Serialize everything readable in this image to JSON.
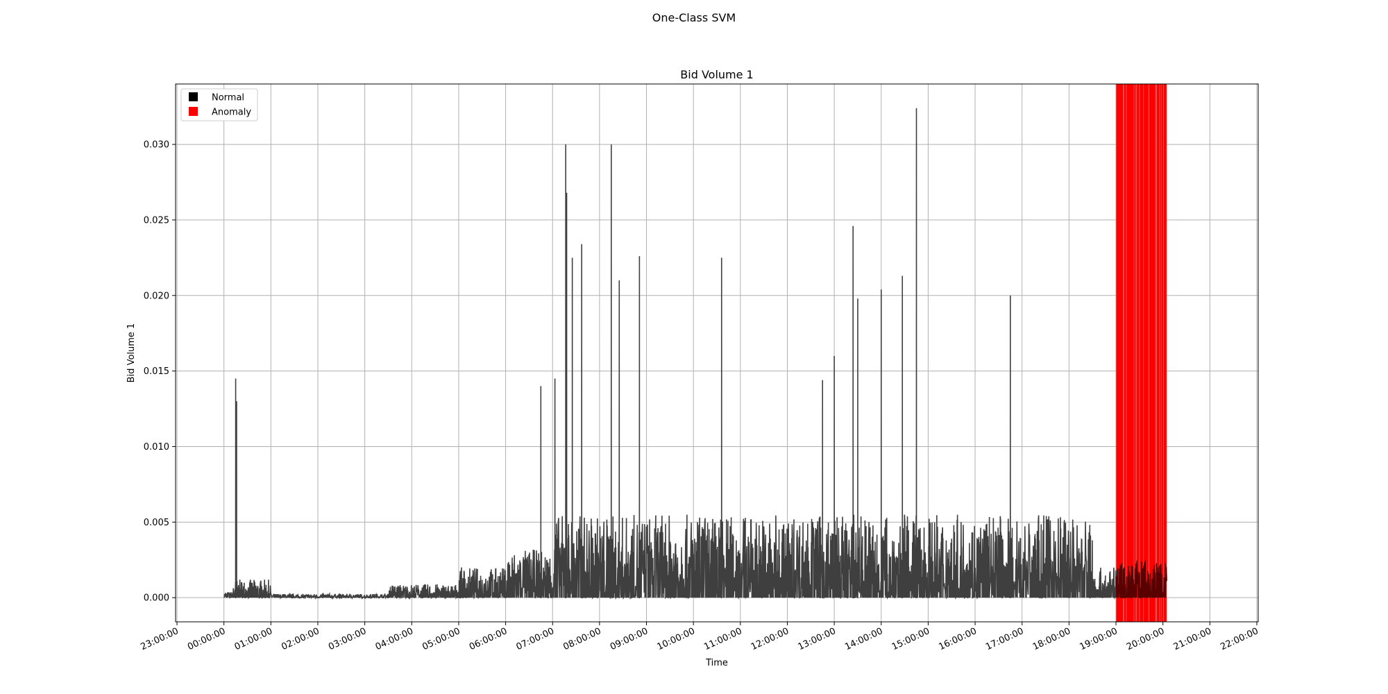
{
  "figure": {
    "suptitle": "One-Class SVM"
  },
  "chart_data": {
    "type": "line",
    "title": "Bid Volume 1",
    "xlabel": "Time",
    "ylabel": "Bid Volume 1",
    "x_axis": "time of day (hours since 23:00:00)",
    "xlim": [
      -0.03,
      23.03
    ],
    "ylim": [
      -0.0016,
      0.034
    ],
    "yticks": [
      0.0,
      0.005,
      0.01,
      0.015,
      0.02,
      0.025,
      0.03
    ],
    "ytick_labels": [
      "0.000",
      "0.005",
      "0.010",
      "0.015",
      "0.020",
      "0.025",
      "0.030"
    ],
    "xtick_labels": [
      "23:00:00",
      "00:00:00",
      "01:00:00",
      "02:00:00",
      "03:00:00",
      "04:00:00",
      "05:00:00",
      "06:00:00",
      "07:00:00",
      "08:00:00",
      "09:00:00",
      "10:00:00",
      "11:00:00",
      "12:00:00",
      "13:00:00",
      "14:00:00",
      "15:00:00",
      "16:00:00",
      "17:00:00",
      "18:00:00",
      "19:00:00",
      "20:00:00",
      "21:00:00",
      "22:00:00"
    ],
    "grid": true,
    "legend": {
      "placement": "upper left",
      "entries": [
        {
          "label": "Normal",
          "color": "#000000"
        },
        {
          "label": "Anomaly",
          "color": "#ff0000"
        }
      ]
    },
    "colors": {
      "normal_line": "#3f3f3f",
      "anomaly_band": "#ff0000"
    },
    "anomaly_ranges": [
      [
        20.0,
        21.08
      ]
    ],
    "peaks": [
      [
        1.25,
        0.0145
      ],
      [
        1.27,
        0.013
      ],
      [
        8.28,
        0.03
      ],
      [
        8.3,
        0.0268
      ],
      [
        8.42,
        0.0225
      ],
      [
        8.62,
        0.0234
      ],
      [
        9.25,
        0.03
      ],
      [
        9.42,
        0.021
      ],
      [
        9.85,
        0.0226
      ],
      [
        11.6,
        0.0225
      ],
      [
        14.4,
        0.0246
      ],
      [
        15.45,
        0.0213
      ],
      [
        15.75,
        0.0324
      ],
      [
        17.75,
        0.02
      ],
      [
        8.05,
        0.0145
      ],
      [
        7.75,
        0.014
      ],
      [
        14.0,
        0.016
      ],
      [
        13.75,
        0.0144
      ],
      [
        14.5,
        0.0198
      ],
      [
        15.0,
        0.0204
      ]
    ]
  }
}
